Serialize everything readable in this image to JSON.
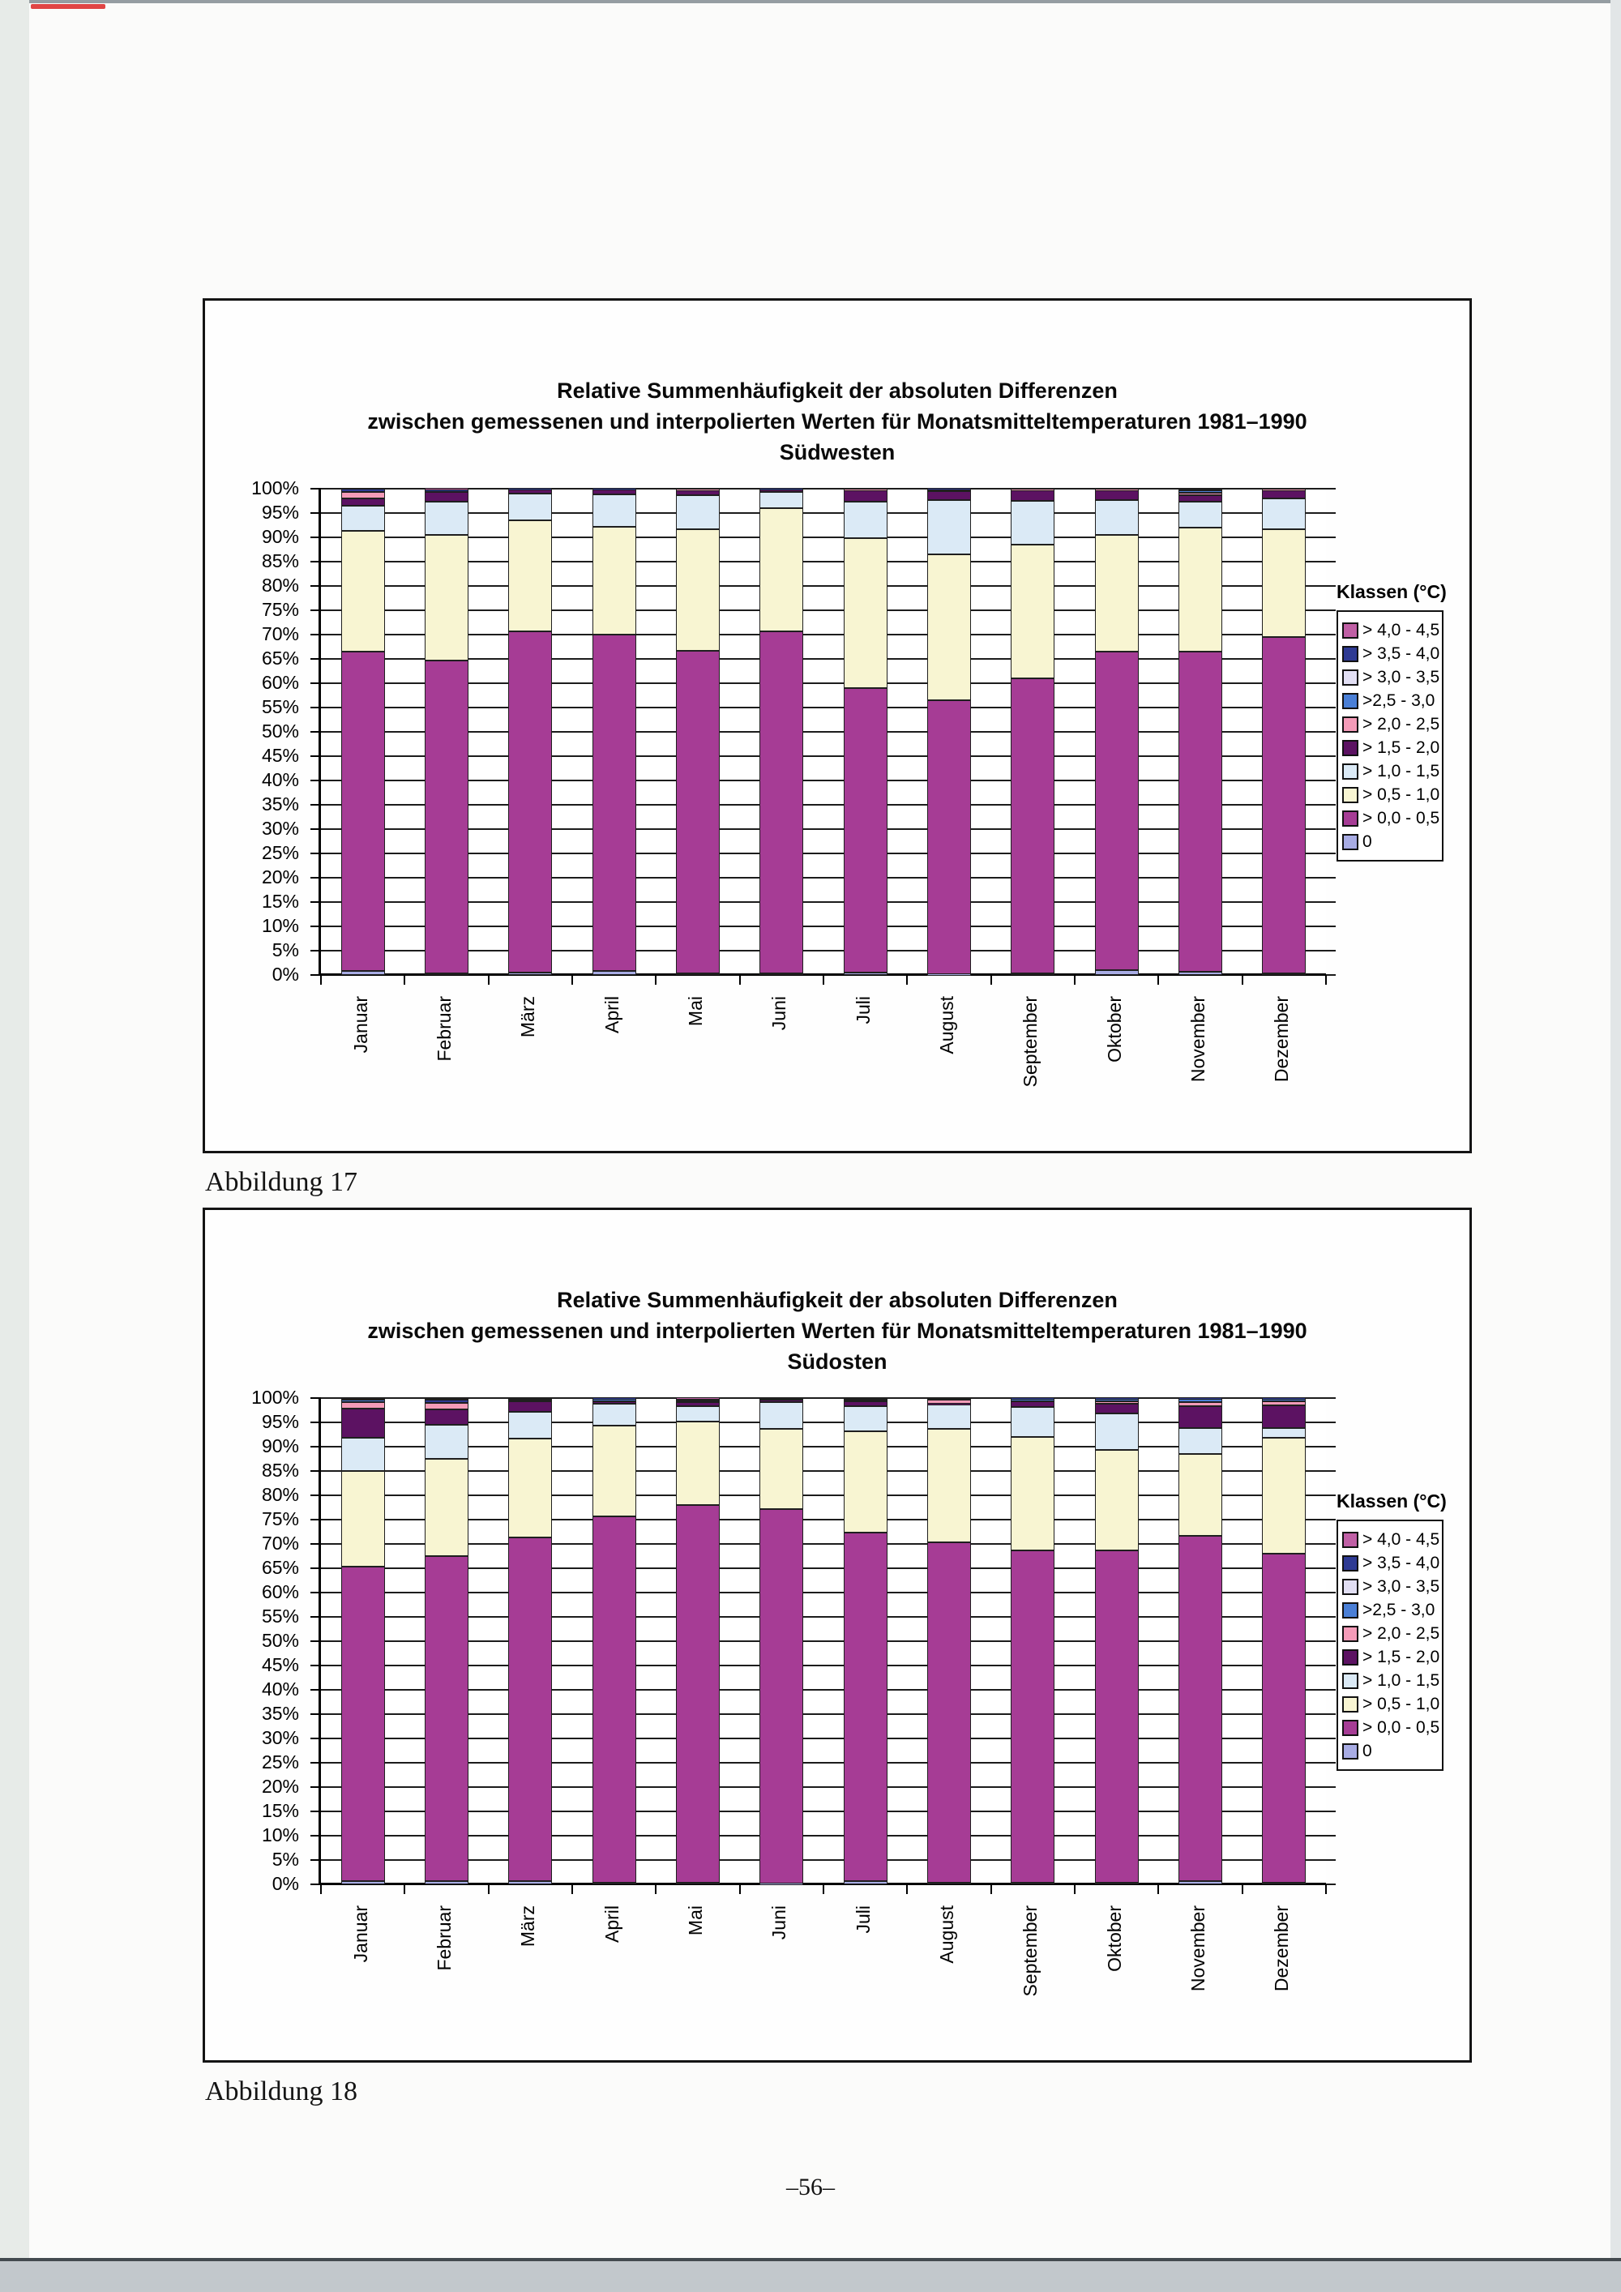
{
  "page": {
    "captions": [
      "Abbildung 17",
      "Abbildung 18"
    ],
    "page_number": "–56–"
  },
  "chart_data": [
    {
      "type": "bar",
      "stacked": true,
      "title_line1": "Relative Summenhäufigkeit der absoluten Differenzen",
      "title_line2": "zwischen gemessenen und interpolierten Werten für Monatsmitteltemperaturen 1981–1990",
      "title_line3": "Südwesten",
      "legend_title": "Klassen (°C)",
      "legend_position": "right",
      "grid": true,
      "ylim": [
        0,
        100
      ],
      "ytick_step": 5,
      "ytick_format": "percent",
      "categories": [
        "Januar",
        "Februar",
        "März",
        "April",
        "Mai",
        "Juni",
        "Juli",
        "August",
        "September",
        "Oktober",
        "November",
        "Dezember"
      ],
      "series": [
        {
          "name": "0",
          "color": "#A8ACE4",
          "values": [
            0.8,
            0.4,
            0.5,
            0.8,
            0.3,
            0.4,
            0.5,
            0.2,
            0.3,
            1.0,
            0.7,
            0.3
          ]
        },
        {
          "name": "> 0,0 - 0,5",
          "color": "#A63C95",
          "values": [
            65.7,
            64.2,
            70.1,
            69.2,
            66.3,
            70.2,
            58.5,
            56.3,
            60.7,
            65.5,
            65.8,
            69.2
          ]
        },
        {
          "name": "> 0,5 - 1,0",
          "color": "#F8F5D2",
          "values": [
            24.9,
            25.9,
            22.9,
            22.2,
            25.1,
            25.4,
            30.8,
            30.0,
            27.5,
            24.0,
            25.5,
            22.2
          ]
        },
        {
          "name": "> 1,0 - 1,5",
          "color": "#DBEAF6",
          "values": [
            5.1,
            6.9,
            5.5,
            6.6,
            6.9,
            3.3,
            7.6,
            11.1,
            9.0,
            7.1,
            5.3,
            6.3
          ]
        },
        {
          "name": "> 1,5 - 2,0",
          "color": "#5C1262",
          "values": [
            1.5,
            2.0,
            0.8,
            1.0,
            1.0,
            0.5,
            2.2,
            1.9,
            2.1,
            2.0,
            1.3,
            1.6
          ]
        },
        {
          "name": "> 2,0 - 2,5",
          "color": "#F49BB8",
          "values": [
            1.4,
            0,
            0,
            0,
            0.2,
            0,
            0.2,
            0.3,
            0.3,
            0.3,
            0.6,
            0.3
          ]
        },
        {
          "name": ">2,5 - 3,0",
          "color": "#4A7FD6",
          "values": [
            0,
            0,
            0,
            0,
            0,
            0,
            0,
            0,
            0,
            0,
            0.5,
            0
          ]
        },
        {
          "name": "> 3,0 - 3,5",
          "color": "#E2DFF4",
          "values": [
            0,
            0,
            0,
            0,
            0,
            0,
            0,
            0,
            0,
            0,
            0,
            0
          ]
        },
        {
          "name": "> 3,5 - 4,0",
          "color": "#2E3A93",
          "values": [
            0.6,
            0.4,
            0.2,
            0.2,
            0.2,
            0.2,
            0,
            0.2,
            0.1,
            0.1,
            0.3,
            0.1
          ]
        },
        {
          "name": "> 4,0 - 4,5",
          "color": "#C05FA5",
          "values": [
            0,
            0.2,
            0,
            0,
            0,
            0,
            0.2,
            0,
            0,
            0,
            0,
            0
          ]
        }
      ]
    },
    {
      "type": "bar",
      "stacked": true,
      "title_line1": "Relative Summenhäufigkeit der absoluten Differenzen",
      "title_line2": "zwischen gemessenen und interpolierten Werten für Monatsmitteltemperaturen 1981–1990",
      "title_line3": "Südosten",
      "legend_title": "Klassen (°C)",
      "legend_position": "right",
      "grid": true,
      "ylim": [
        0,
        100
      ],
      "ytick_step": 5,
      "ytick_format": "percent",
      "categories": [
        "Januar",
        "Februar",
        "März",
        "April",
        "Mai",
        "Juni",
        "Juli",
        "August",
        "September",
        "Oktober",
        "November",
        "Dezember"
      ],
      "series": [
        {
          "name": "0",
          "color": "#A8ACE4",
          "values": [
            0.7,
            0.7,
            0.6,
            0.4,
            0.4,
            0.2,
            0.7,
            0.4,
            0.4,
            0.4,
            0.7,
            0.3
          ]
        },
        {
          "name": "> 0,0 - 0,5",
          "color": "#A63C95",
          "values": [
            64.6,
            66.8,
            70.7,
            75.2,
            77.6,
            76.9,
            71.6,
            70.0,
            68.3,
            68.3,
            71.0,
            67.7
          ]
        },
        {
          "name": "> 0,5 - 1,0",
          "color": "#F8F5D2",
          "values": [
            19.7,
            20.0,
            20.4,
            18.7,
            17.2,
            16.6,
            20.9,
            23.2,
            23.3,
            20.6,
            16.8,
            23.9
          ]
        },
        {
          "name": "> 1,0 - 1,5",
          "color": "#DBEAF6",
          "values": [
            6.8,
            7.0,
            5.5,
            4.6,
            3.1,
            5.5,
            5.1,
            5.1,
            6.2,
            7.6,
            5.4,
            2.0
          ]
        },
        {
          "name": "> 1,5 - 2,0",
          "color": "#5C1262",
          "values": [
            6.1,
            3.1,
            2.2,
            0.5,
            0.9,
            0.5,
            1.0,
            0.2,
            1.2,
            1.9,
            4.5,
            4.6
          ]
        },
        {
          "name": "> 2,0 - 2,5",
          "color": "#F49BB8",
          "values": [
            1.3,
            1.4,
            0,
            0,
            0.3,
            0,
            0,
            0.7,
            0,
            0.6,
            0.8,
            0.8
          ]
        },
        {
          "name": ">2,5 - 3,0",
          "color": "#4A7FD6",
          "values": [
            0.5,
            0,
            0.3,
            0.4,
            0,
            0,
            0.4,
            0,
            0.4,
            0.5,
            0.7,
            0.5
          ]
        },
        {
          "name": "> 3,0 - 3,5",
          "color": "#E2DFF4",
          "values": [
            0,
            0,
            0,
            0,
            0,
            0,
            0,
            0,
            0,
            0,
            0,
            0
          ]
        },
        {
          "name": "> 3,5 - 4,0",
          "color": "#2E3A93",
          "values": [
            0.3,
            0.7,
            0.3,
            0.2,
            0.3,
            0.3,
            0.3,
            0.4,
            0.2,
            0.1,
            0.1,
            0.2
          ]
        },
        {
          "name": "> 4,0 - 4,5",
          "color": "#C05FA5",
          "values": [
            0,
            0.3,
            0,
            0,
            0.2,
            0,
            0,
            0,
            0,
            0,
            0,
            0
          ]
        }
      ]
    }
  ]
}
